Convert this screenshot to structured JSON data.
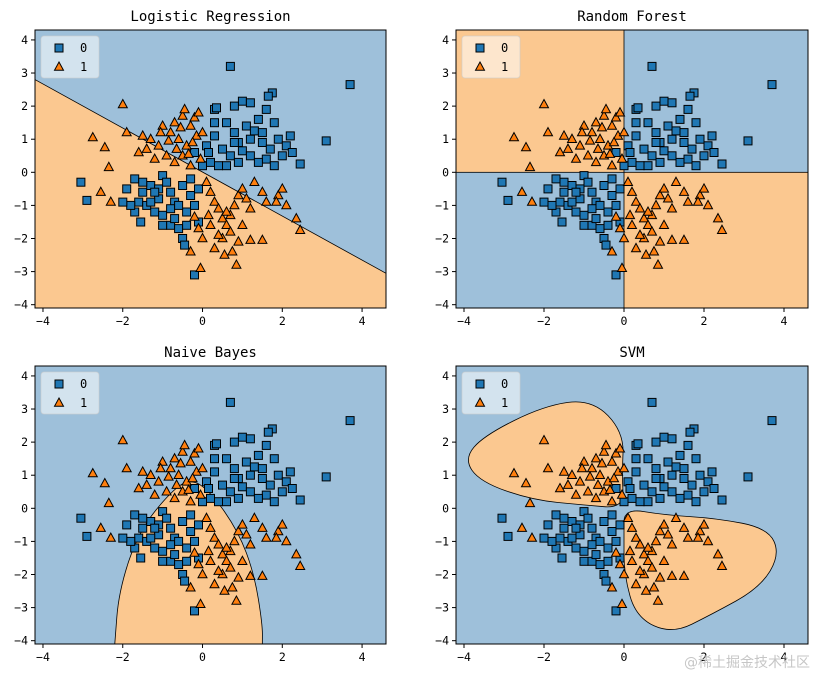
{
  "colors": {
    "class0_region": "#9ec0da",
    "class1_region": "#fbc890",
    "class0_marker": "#1f77b4",
    "class1_marker": "#ff7f0e",
    "marker_edge": "#000000",
    "boundary": "#000000"
  },
  "watermark": "@稀土掘金技术社区",
  "chart_data": [
    {
      "type": "scatter",
      "title": "Logistic Regression",
      "xlim": [
        -4.2,
        4.6
      ],
      "ylim": [
        -4.1,
        4.3
      ],
      "xticks": [
        -4,
        -2,
        0,
        2,
        4
      ],
      "yticks": [
        -4,
        -3,
        -2,
        -1,
        0,
        1,
        2,
        3,
        4
      ],
      "legend": {
        "position": "upper-left",
        "entries": [
          {
            "label": "0",
            "marker": "square"
          },
          {
            "label": "1",
            "marker": "triangle"
          }
        ]
      },
      "decision_region": {
        "model": "linear",
        "class1_side": "below",
        "boundary_points": [
          [
            -4.2,
            2.8
          ],
          [
            4.6,
            -3.05
          ]
        ]
      }
    },
    {
      "type": "scatter",
      "title": "Random Forest",
      "xlim": [
        -4.2,
        4.6
      ],
      "ylim": [
        -4.1,
        4.3
      ],
      "xticks": [
        -4,
        -2,
        0,
        2,
        4
      ],
      "yticks": [
        -4,
        -3,
        -2,
        -1,
        0,
        1,
        2,
        3,
        4
      ],
      "legend": {
        "position": "upper-left",
        "entries": [
          {
            "label": "0",
            "marker": "square"
          },
          {
            "label": "1",
            "marker": "triangle"
          }
        ]
      },
      "decision_region": {
        "model": "tree",
        "class1_quadrants": [
          "x<0,y>0",
          "x>0,y<0"
        ],
        "split_x": 0,
        "split_y": 0
      }
    },
    {
      "type": "scatter",
      "title": "Naive Bayes",
      "xlim": [
        -4.2,
        4.6
      ],
      "ylim": [
        -4.1,
        4.3
      ],
      "xticks": [
        -4,
        -2,
        0,
        2,
        4
      ],
      "yticks": [
        -4,
        -3,
        -2,
        -1,
        0,
        1,
        2,
        3,
        4
      ],
      "legend": {
        "position": "upper-left",
        "entries": [
          {
            "label": "0",
            "marker": "square"
          },
          {
            "label": "1",
            "marker": "triangle"
          }
        ]
      },
      "decision_region": {
        "model": "gaussian",
        "class1_region": "open U shape",
        "boundary_points": [
          [
            -2.2,
            -4.1
          ],
          [
            -2.1,
            -2.5
          ],
          [
            -1.6,
            -0.7
          ],
          [
            -0.8,
            0.5
          ],
          [
            -0.3,
            0.9
          ],
          [
            0.2,
            0.5
          ],
          [
            0.9,
            -0.7
          ],
          [
            1.3,
            -2.0
          ],
          [
            1.5,
            -3.5
          ],
          [
            1.5,
            -4.1
          ]
        ]
      }
    },
    {
      "type": "scatter",
      "title": "SVM",
      "xlim": [
        -4.2,
        4.6
      ],
      "ylim": [
        -4.1,
        4.3
      ],
      "xticks": [
        -4,
        -2,
        0,
        2,
        4
      ],
      "yticks": [
        -4,
        -3,
        -2,
        -1,
        0,
        1,
        2,
        3,
        4
      ],
      "legend": {
        "position": "upper-left",
        "entries": [
          {
            "label": "0",
            "marker": "square"
          },
          {
            "label": "1",
            "marker": "triangle"
          }
        ]
      },
      "decision_region": {
        "model": "rbf",
        "class1_blobs": [
          [
            [
              0.0,
              0.0
            ],
            [
              -0.05,
              1.0
            ],
            [
              0.0,
              2.3
            ],
            [
              -0.8,
              3.3
            ],
            [
              -2.0,
              3.1
            ],
            [
              -3.5,
              2.2
            ],
            [
              -4.0,
              1.5
            ],
            [
              -3.6,
              0.8
            ],
            [
              -2.3,
              0.25
            ],
            [
              -1.0,
              0.1
            ]
          ],
          [
            [
              0.0,
              0.0
            ],
            [
              1.0,
              -0.2
            ],
            [
              2.3,
              -0.3
            ],
            [
              3.6,
              -0.6
            ],
            [
              3.9,
              -1.4
            ],
            [
              3.4,
              -2.4
            ],
            [
              2.2,
              -3.2
            ],
            [
              1.2,
              -3.8
            ],
            [
              0.3,
              -3.3
            ],
            [
              0.0,
              -2.0
            ],
            [
              0.0,
              -0.8
            ]
          ]
        ]
      }
    }
  ],
  "points": {
    "class0": [
      [
        0.7,
        3.2
      ],
      [
        3.7,
        2.65
      ],
      [
        1.0,
        2.15
      ],
      [
        1.2,
        2.1
      ],
      [
        0.8,
        2.0
      ],
      [
        1.6,
        1.9
      ],
      [
        1.75,
        2.4
      ],
      [
        1.65,
        2.3
      ],
      [
        1.4,
        1.6
      ],
      [
        1.8,
        1.5
      ],
      [
        0.3,
        1.9
      ],
      [
        0.35,
        1.95
      ],
      [
        1.1,
        1.4
      ],
      [
        1.3,
        1.25
      ],
      [
        3.1,
        0.95
      ],
      [
        2.45,
        0.25
      ],
      [
        1.9,
        1.0
      ],
      [
        2.1,
        0.8
      ],
      [
        2.25,
        0.6
      ],
      [
        1.5,
        0.9
      ],
      [
        0.6,
        1.5
      ],
      [
        0.8,
        1.2
      ],
      [
        0.3,
        1.1
      ],
      [
        0.1,
        0.8
      ],
      [
        0.5,
        0.7
      ],
      [
        0.7,
        0.5
      ],
      [
        1.0,
        0.65
      ],
      [
        1.2,
        0.5
      ],
      [
        0.9,
        0.3
      ],
      [
        1.6,
        0.4
      ],
      [
        1.4,
        0.3
      ],
      [
        1.8,
        0.2
      ],
      [
        2.0,
        0.5
      ],
      [
        0.2,
        0.3
      ],
      [
        0.4,
        0.2
      ],
      [
        0.6,
        0.2
      ],
      [
        0.15,
        0.6
      ],
      [
        0.3,
        1.5
      ],
      [
        1.5,
        1.2
      ],
      [
        0.9,
        0.9
      ],
      [
        2.2,
        1.1
      ],
      [
        1.7,
        0.7
      ],
      [
        -0.2,
        0.6
      ],
      [
        0.0,
        0.2
      ],
      [
        0.8,
        0.9
      ],
      [
        1.2,
        1.0
      ],
      [
        -3.05,
        -0.3
      ],
      [
        -2.9,
        -0.85
      ],
      [
        -1.9,
        -0.5
      ],
      [
        -1.7,
        -0.2
      ],
      [
        -1.5,
        -0.6
      ],
      [
        -1.3,
        -0.4
      ],
      [
        -1.1,
        -0.5
      ],
      [
        -1.0,
        -0.1
      ],
      [
        -0.9,
        -0.3
      ],
      [
        -0.8,
        -0.6
      ],
      [
        -1.6,
        -0.9
      ],
      [
        -1.4,
        -1.0
      ],
      [
        -1.2,
        -1.2
      ],
      [
        -1.0,
        -1.3
      ],
      [
        -0.8,
        -1.6
      ],
      [
        -0.6,
        -1.7
      ],
      [
        -0.5,
        -2.0
      ],
      [
        -0.45,
        -2.2
      ],
      [
        -0.4,
        -1.2
      ],
      [
        -1.55,
        -1.5
      ],
      [
        -1.7,
        -1.2
      ],
      [
        -1.1,
        -0.8
      ],
      [
        -0.7,
        -0.9
      ],
      [
        -0.3,
        -0.7
      ],
      [
        -0.1,
        -1.5
      ],
      [
        -0.2,
        -1.0
      ],
      [
        -0.2,
        -3.1
      ],
      [
        -1.8,
        -1.0
      ],
      [
        -2.0,
        -0.9
      ],
      [
        -1.3,
        -0.9
      ],
      [
        -1.0,
        -1.6
      ],
      [
        -0.7,
        -1.4
      ],
      [
        -0.5,
        -0.4
      ],
      [
        -0.3,
        -0.2
      ],
      [
        -0.1,
        -0.5
      ],
      [
        -1.5,
        -0.3
      ],
      [
        -0.8,
        -1.1
      ],
      [
        -1.2,
        -0.6
      ],
      [
        -0.6,
        -1.0
      ],
      [
        -0.4,
        -1.6
      ]
    ],
    "class1": [
      [
        -2.0,
        2.05
      ],
      [
        -2.75,
        1.05
      ],
      [
        -2.45,
        0.75
      ],
      [
        -2.35,
        0.15
      ],
      [
        -2.55,
        -0.6
      ],
      [
        -2.3,
        -0.9
      ],
      [
        -1.9,
        1.2
      ],
      [
        -1.5,
        1.1
      ],
      [
        -1.3,
        1.0
      ],
      [
        -1.1,
        0.8
      ],
      [
        -1.0,
        1.4
      ],
      [
        -0.8,
        1.2
      ],
      [
        -0.7,
        1.5
      ],
      [
        -0.5,
        1.7
      ],
      [
        -0.6,
        1.0
      ],
      [
        -0.4,
        0.8
      ],
      [
        -0.3,
        1.4
      ],
      [
        -0.2,
        1.65
      ],
      [
        -0.1,
        1.8
      ],
      [
        -0.9,
        0.5
      ],
      [
        -1.2,
        0.4
      ],
      [
        -0.7,
        0.3
      ],
      [
        -0.5,
        0.5
      ],
      [
        -0.3,
        0.2
      ],
      [
        -1.6,
        0.6
      ],
      [
        -0.15,
        1.1
      ],
      [
        -0.35,
        0.55
      ],
      [
        -0.05,
        0.4
      ],
      [
        -1.05,
        1.2
      ],
      [
        -0.85,
        0.95
      ],
      [
        -0.55,
        1.35
      ],
      [
        -0.25,
        0.9
      ],
      [
        -1.4,
        0.7
      ],
      [
        -0.45,
        1.9
      ],
      [
        -0.65,
        0.7
      ],
      [
        0.0,
        1.2
      ],
      [
        0.1,
        -0.3
      ],
      [
        0.2,
        -0.6
      ],
      [
        0.3,
        -0.9
      ],
      [
        0.4,
        -1.1
      ],
      [
        0.5,
        -1.4
      ],
      [
        0.6,
        -1.6
      ],
      [
        0.7,
        -1.3
      ],
      [
        0.8,
        -1.0
      ],
      [
        0.9,
        -0.7
      ],
      [
        1.0,
        -0.5
      ],
      [
        1.1,
        -0.8
      ],
      [
        1.2,
        -1.1
      ],
      [
        1.3,
        -0.3
      ],
      [
        1.5,
        -0.6
      ],
      [
        1.6,
        -0.9
      ],
      [
        1.9,
        -0.7
      ],
      [
        2.1,
        -1.0
      ],
      [
        2.35,
        -1.4
      ],
      [
        2.45,
        -1.75
      ],
      [
        0.3,
        -2.3
      ],
      [
        0.5,
        -2.0
      ],
      [
        0.7,
        -1.8
      ],
      [
        0.9,
        -2.1
      ],
      [
        1.0,
        -1.6
      ],
      [
        1.2,
        -2.05
      ],
      [
        1.5,
        -2.05
      ],
      [
        0.75,
        -2.4
      ],
      [
        0.55,
        -2.5
      ],
      [
        0.85,
        -2.8
      ],
      [
        0.2,
        -1.6
      ],
      [
        0.4,
        -1.9
      ],
      [
        0.6,
        -1.2
      ],
      [
        0.15,
        -1.3
      ],
      [
        2.0,
        -0.5
      ],
      [
        1.85,
        -0.9
      ],
      [
        0.0,
        -2.0
      ],
      [
        -0.1,
        -1.7
      ],
      [
        -0.3,
        -2.4
      ],
      [
        -0.05,
        -2.9
      ],
      [
        -0.2,
        -1.35
      ]
    ]
  }
}
